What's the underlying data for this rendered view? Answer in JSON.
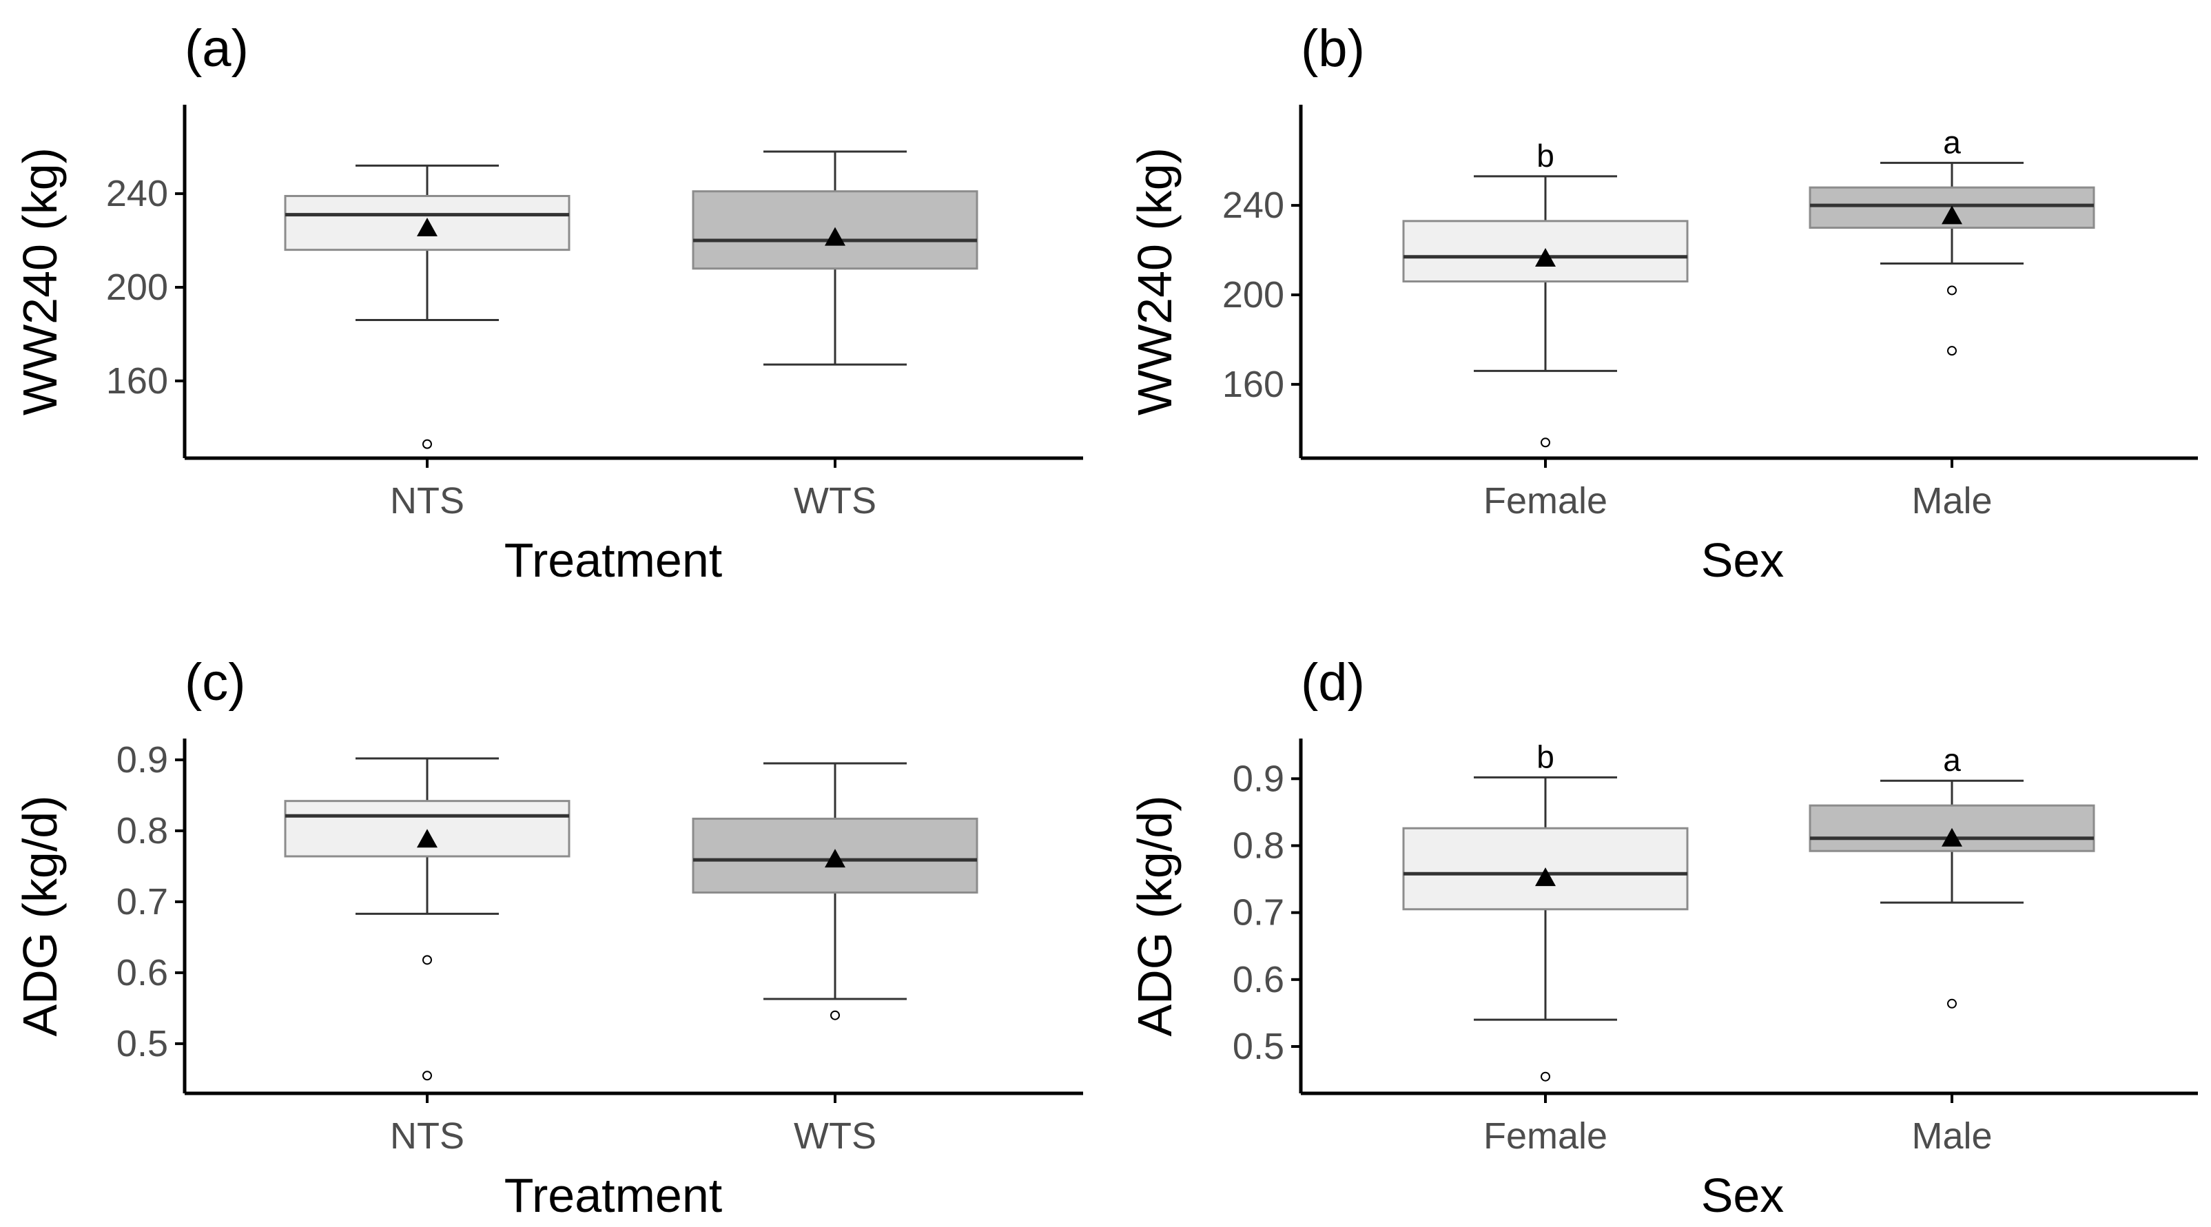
{
  "colors": {
    "box_fill_light": "#f0f0f0",
    "box_fill_dark": "#bdbdbd",
    "box_stroke": "#8c8c8c",
    "median_line": "#333333",
    "whisker": "#333333",
    "mean_marker": "#000000",
    "axis": "#000000",
    "tick_text": "#4d4d4d"
  },
  "chart_data": [
    {
      "panel": "(a)",
      "type": "box",
      "xlabel": "Treatment",
      "ylabel": "WW240 (kg)",
      "ylim": [
        127,
        278
      ],
      "yticks": [
        160,
        200,
        240
      ],
      "grid": false,
      "legend": "none",
      "categories": [
        "NTS",
        "WTS"
      ],
      "boxes": [
        {
          "category": "NTS",
          "fill": "light",
          "whisker_low": 186,
          "q1": 216,
          "median": 231,
          "q3": 239,
          "whisker_high": 252,
          "mean": 225,
          "outliers": [
            133
          ],
          "letter": ""
        },
        {
          "category": "WTS",
          "fill": "dark",
          "whisker_low": 167,
          "q1": 208,
          "median": 220,
          "q3": 241,
          "whisker_high": 258,
          "mean": 221,
          "outliers": [],
          "letter": ""
        }
      ]
    },
    {
      "panel": "(b)",
      "type": "box",
      "xlabel": "Sex",
      "ylabel": "WW240 (kg)",
      "ylim": [
        127,
        285
      ],
      "yticks": [
        160,
        200,
        240
      ],
      "grid": false,
      "legend": "none",
      "categories": [
        "Female",
        "Male"
      ],
      "boxes": [
        {
          "category": "Female",
          "fill": "light",
          "whisker_low": 166,
          "q1": 206,
          "median": 217,
          "q3": 233,
          "whisker_high": 253,
          "mean": 216,
          "outliers": [
            134
          ],
          "letter": "b"
        },
        {
          "category": "Male",
          "fill": "dark",
          "whisker_low": 214,
          "q1": 230,
          "median": 240,
          "q3": 248,
          "whisker_high": 259,
          "mean": 235,
          "outliers": [
            202,
            175
          ],
          "letter": "a"
        }
      ]
    },
    {
      "panel": "(c)",
      "type": "box",
      "xlabel": "Treatment",
      "ylabel": "ADG (kg/d)",
      "ylim": [
        0.43,
        0.93
      ],
      "yticks": [
        0.5,
        0.6,
        0.7,
        0.8,
        0.9
      ],
      "grid": false,
      "legend": "none",
      "categories": [
        "NTS",
        "WTS"
      ],
      "boxes": [
        {
          "category": "NTS",
          "fill": "light",
          "whisker_low": 0.683,
          "q1": 0.764,
          "median": 0.821,
          "q3": 0.842,
          "whisker_high": 0.902,
          "mean": 0.787,
          "outliers": [
            0.618,
            0.455
          ],
          "letter": ""
        },
        {
          "category": "WTS",
          "fill": "dark",
          "whisker_low": 0.563,
          "q1": 0.713,
          "median": 0.759,
          "q3": 0.817,
          "whisker_high": 0.895,
          "mean": 0.759,
          "outliers": [
            0.54
          ],
          "letter": ""
        }
      ]
    },
    {
      "panel": "(d)",
      "type": "box",
      "xlabel": "Sex",
      "ylabel": "ADG (kg/d)",
      "ylim": [
        0.43,
        0.96
      ],
      "yticks": [
        0.5,
        0.6,
        0.7,
        0.8,
        0.9
      ],
      "grid": false,
      "legend": "none",
      "categories": [
        "Female",
        "Male"
      ],
      "boxes": [
        {
          "category": "Female",
          "fill": "light",
          "whisker_low": 0.54,
          "q1": 0.705,
          "median": 0.758,
          "q3": 0.826,
          "whisker_high": 0.902,
          "mean": 0.751,
          "outliers": [
            0.455
          ],
          "letter": "b"
        },
        {
          "category": "Male",
          "fill": "dark",
          "whisker_low": 0.715,
          "q1": 0.792,
          "median": 0.811,
          "q3": 0.86,
          "whisker_high": 0.897,
          "mean": 0.81,
          "outliers": [
            0.564
          ],
          "letter": "a"
        }
      ]
    }
  ]
}
